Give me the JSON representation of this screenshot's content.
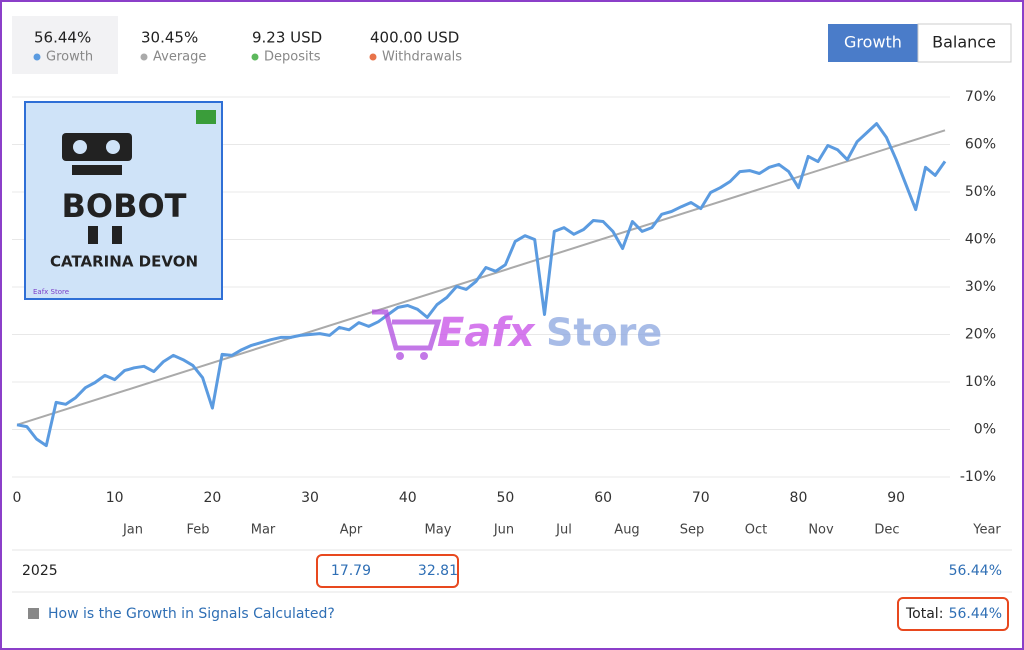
{
  "stats": [
    {
      "value": "56.44%",
      "label": "Growth",
      "color": "#5b9be0"
    },
    {
      "value": "30.45%",
      "label": "Average",
      "color": "#aaaaaa"
    },
    {
      "value": "9.23 USD",
      "label": "Deposits",
      "color": "#5cb85c"
    },
    {
      "value": "400.00 USD",
      "label": "Withdrawals",
      "color": "#e8734a"
    }
  ],
  "buttons": [
    "Growth",
    "Balance"
  ],
  "logo": {
    "title": "BOBOT",
    "name": "CATARINA DEVON",
    "brand": "Eafx Store"
  },
  "watermark": [
    "Eafx",
    "Store"
  ],
  "chart_data": {
    "type": "line",
    "xlim": [
      0,
      95
    ],
    "ylim": [
      -10,
      70
    ],
    "xticks": [
      0,
      10,
      20,
      30,
      40,
      50,
      60,
      70,
      80,
      90
    ],
    "yticks": [
      {
        "value": 70,
        "label": "70%"
      },
      {
        "value": 60,
        "label": "60%"
      },
      {
        "value": 50,
        "label": "50%"
      },
      {
        "value": 40,
        "label": "40%"
      },
      {
        "value": 30,
        "label": "30%"
      },
      {
        "value": 20,
        "label": "20%"
      },
      {
        "value": 10,
        "label": "10%"
      },
      {
        "value": 0,
        "label": "0%"
      },
      {
        "value": -10,
        "label": "-10%"
      }
    ],
    "grid": true,
    "months": [
      "Jan",
      "Feb",
      "Mar",
      "Apr",
      "May",
      "Jun",
      "Jul",
      "Aug",
      "Sep",
      "Oct",
      "Nov",
      "Dec",
      "Year"
    ],
    "x": [
      0,
      1,
      2,
      3,
      4,
      5,
      6,
      7,
      8,
      9,
      10,
      11,
      12,
      13,
      14,
      15,
      16,
      17,
      18,
      19,
      20,
      21,
      22,
      23,
      24,
      25,
      26,
      27,
      28,
      29,
      30,
      31,
      32,
      33,
      34,
      35,
      36,
      37,
      38,
      39,
      40,
      41,
      42,
      43,
      44,
      45,
      46,
      47,
      48,
      49,
      50,
      51,
      52,
      53,
      54,
      55,
      56,
      57,
      58,
      59,
      60,
      61,
      62,
      63,
      64,
      65,
      66,
      67,
      68,
      69,
      70,
      71,
      72,
      73,
      74,
      75,
      76,
      77,
      78,
      79,
      80,
      81,
      82,
      83,
      84,
      85,
      86,
      87,
      88,
      89,
      90,
      91,
      92,
      93,
      94,
      95
    ],
    "series": [
      {
        "name": "Growth",
        "color": "#5b9be0",
        "values": [
          1,
          0.6,
          -2,
          -3.4,
          5.7,
          5.3,
          6.7,
          8.8,
          9.9,
          11.4,
          10.5,
          12.4,
          13,
          13.3,
          12.2,
          14.3,
          15.6,
          14.7,
          13.5,
          10.9,
          4.5,
          15.8,
          15.6,
          16.8,
          17.7,
          18.3,
          18.9,
          19.4,
          19.4,
          19.8,
          20,
          20.2,
          19.8,
          21.5,
          21,
          22.5,
          21.7,
          22.7,
          24.2,
          25.7,
          26.1,
          25.3,
          23.6,
          26.3,
          27.8,
          30.1,
          29.5,
          31.2,
          34.1,
          33.3,
          34.7,
          39.6,
          40.8,
          40,
          24.2,
          41.7,
          42.5,
          41.1,
          42.1,
          44,
          43.8,
          41.7,
          38.1,
          43.8,
          41.7,
          42.5,
          45.3,
          45.9,
          46.9,
          47.8,
          46.5,
          49.9,
          50.9,
          52.2,
          54.3,
          54.5,
          53.9,
          55.2,
          55.8,
          54.3,
          50.9,
          57.5,
          56.4,
          59.8,
          58.9,
          56.8,
          60.6,
          62.5,
          64.4,
          61.5,
          56.8,
          51.6,
          46.3,
          55.2,
          53.5,
          56.44
        ]
      },
      {
        "name": "Average",
        "color": "#aaaaaa",
        "x": [
          0,
          95
        ],
        "values": [
          1,
          63
        ]
      }
    ]
  },
  "table": {
    "year": "2025",
    "cells": [
      null,
      null,
      null,
      "17.79",
      "32.81",
      null,
      null,
      null,
      null,
      null,
      null,
      null
    ],
    "total": "56.44%"
  },
  "footer": {
    "link": "How is the Growth in Signals Calculated?",
    "total_label": "Total:",
    "total_value": "56.44%"
  }
}
